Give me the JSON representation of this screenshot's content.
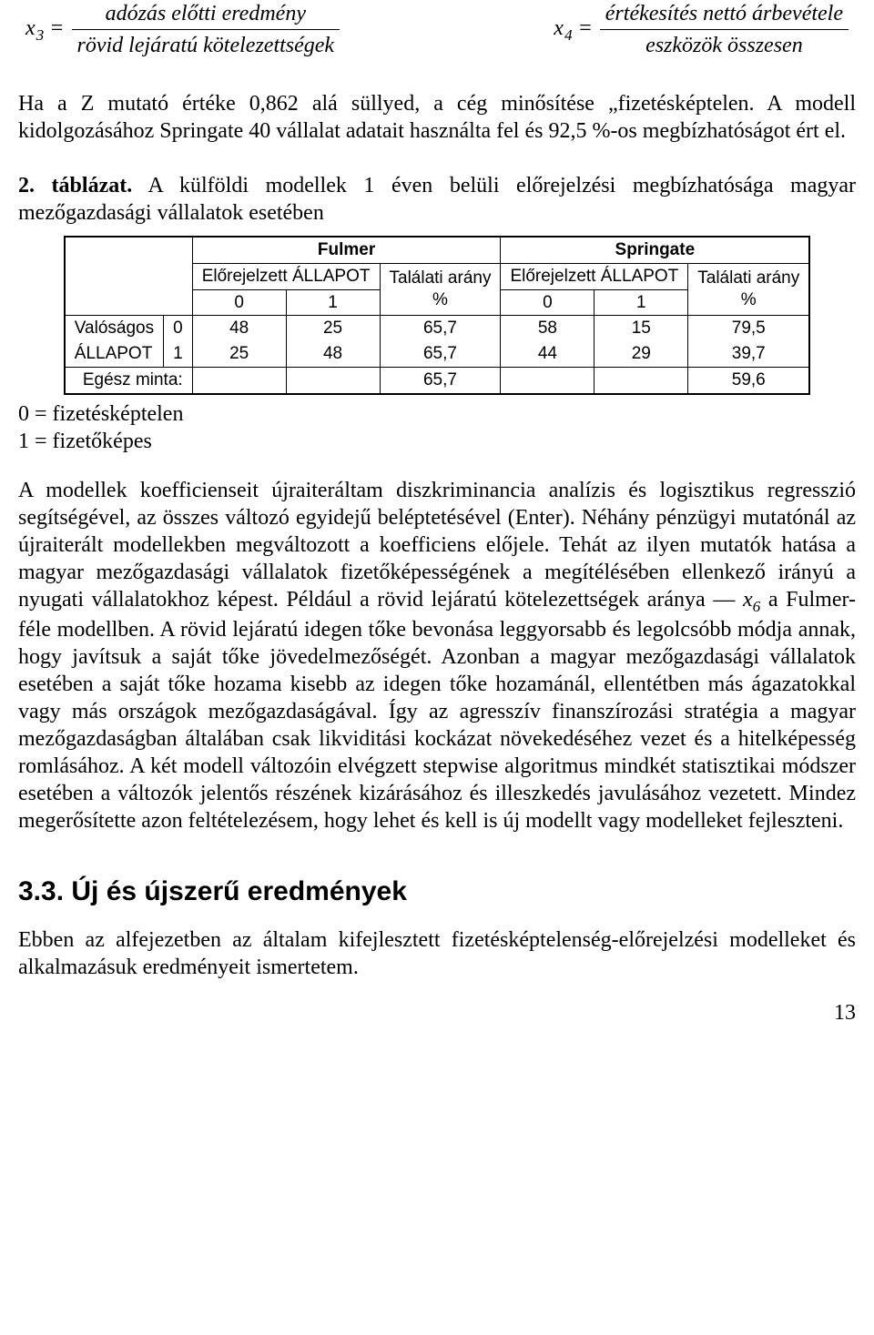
{
  "formulas": {
    "x3": {
      "lhs_var": "x",
      "lhs_sub": "3",
      "eq": "=",
      "num": "adózás előtti eredmény",
      "den": "rövid lejáratú kötelezettségek"
    },
    "x4": {
      "lhs_var": "x",
      "lhs_sub": "4",
      "eq": "=",
      "num": "értékesítés nettó árbevétele",
      "den": "eszközök összesen"
    }
  },
  "para1": "Ha a Z mutató értéke 0,862 alá süllyed, a cég minősítése „fizetésképtelen. A modell kidolgozásához Springate 40 vállalat adatait használta fel és 92,5 %-os megbízhatóságot ért el.",
  "tableCaption": {
    "lead": "2. táblázat.",
    "rest": " A külföldi modellek 1 éven belüli előrejelzési megbízhatósága magyar mezőgazdasági vállalatok esetében"
  },
  "table": {
    "modelA": "Fulmer",
    "modelB": "Springate",
    "predHeader": "Előrejelzett ÁLLAPOT",
    "hitHeader": "Találati arány",
    "col0": "0",
    "col1": "1",
    "pct": "%",
    "rowhead1a": "Valóságos",
    "rowhead1b": "ÁLLAPOT",
    "r0": {
      "lab": "0",
      "f0": "48",
      "f1": "25",
      "fh": "65,7",
      "s0": "58",
      "s1": "15",
      "sh": "79,5"
    },
    "r1": {
      "lab": "1",
      "f0": "25",
      "f1": "48",
      "fh": "65,7",
      "s0": "44",
      "s1": "29",
      "sh": "39,7"
    },
    "totalLabel": "Egész minta:",
    "totF": "65,7",
    "totS": "59,6"
  },
  "legend": {
    "l0": "0 = fizetésképtelen",
    "l1": "1 = fizetőképes"
  },
  "body": {
    "pre": "A modellek koefficienseit újraiteráltam diszkriminancia analízis és logisztikus regresszió segítségével, az összes változó egyidejű beléptetésével (Enter). Néhány pénzügyi mutatónál az újraiterált modellekben megváltozott a koefficiens előjele. Tehát az ilyen mutatók hatása a magyar mezőgazdasági vállalatok fizetőképességének a megítélésében ellenkező irányú a nyugati vállalatokhoz képest. Például a rövid lejáratú kötelezettségek aránya — ",
    "x6_var": "x",
    "x6_sub": "6",
    "post": " a Fulmer-féle modellben. A rövid lejáratú idegen tőke bevonása leggyorsabb és legolcsóbb módja annak, hogy javítsuk a saját tőke jövedelmezőségét. Azonban a magyar mezőgazdasági vállalatok esetében a saját tőke hozama kisebb az idegen tőke hozamánál, ellentétben más ágazatokkal vagy más országok mezőgazdaságával. Így az agresszív finanszírozási stratégia a magyar mezőgazdaságban általában csak likviditási kockázat növekedéséhez vezet és a hitelképesség romlásához. A két modell változóin elvégzett stepwise algoritmus mindkét statisztikai módszer esetében a változók jelentős részének kizárásához és illeszkedés javulásához vezetett. Mindez megerősítette azon feltételezésem, hogy lehet és kell is új modellt vagy modelleket fejleszteni."
  },
  "sectionTitle": "3.3. Új és újszerű eredmények",
  "para2": "Ebben az alfejezetben az általam kifejlesztett fizetésképtelenség-előrejelzési modelleket és alkalmazásuk eredményeit ismertetem.",
  "pageNumber": "13"
}
